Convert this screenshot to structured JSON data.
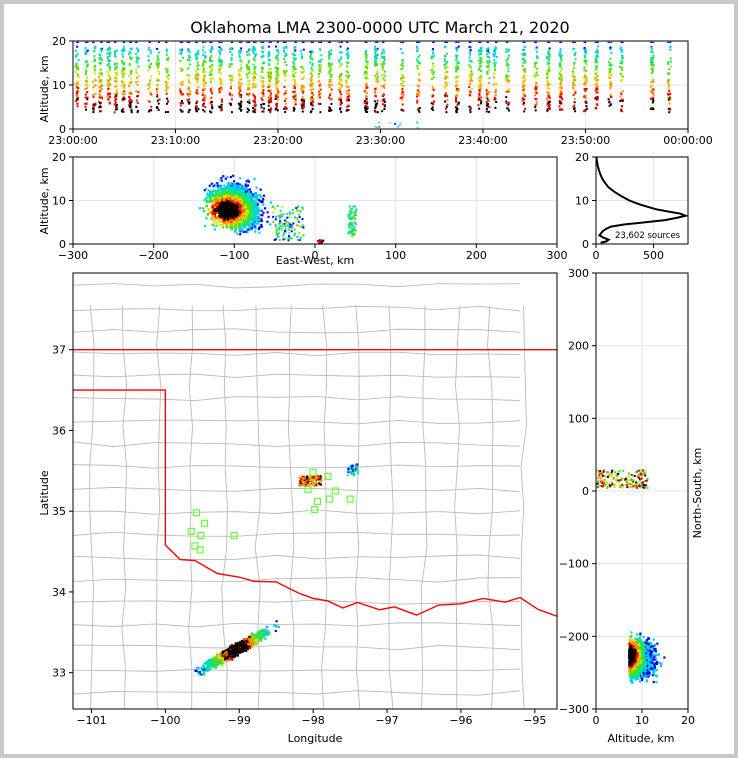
{
  "chart_data": {
    "title": "Oklahoma LMA 2300-0000 UTC March 21, 2020",
    "colors": {
      "sources": [
        "#0000ff",
        "#00c8ff",
        "#00e890",
        "#50e000",
        "#d8e000",
        "#ff9000",
        "#ff0000",
        "#000000"
      ],
      "state_border": "#ff0000",
      "county": "#bbbbbb",
      "station": "#66ff33",
      "grid": "#e6e6e6"
    },
    "time_height": {
      "type": "scatter",
      "ylabel": "Altitude, km",
      "xticks": [
        "23:00:00",
        "23:10:00",
        "23:20:00",
        "23:30:00",
        "23:40:00",
        "23:50:00",
        "00:00:00"
      ],
      "xlim_minutes": [
        0,
        60
      ],
      "ylim": [
        0,
        20
      ],
      "yticks": [
        "0",
        "10",
        "20"
      ],
      "flash_times_minutes": [
        0.3,
        1.2,
        2.0,
        2.6,
        3.4,
        4.1,
        4.8,
        5.5,
        6.2,
        7.4,
        8.2,
        9.1,
        10.5,
        11.2,
        12.0,
        12.7,
        13.4,
        14.3,
        15.3,
        16.2,
        17.0,
        17.6,
        18.4,
        19.1,
        19.8,
        20.6,
        21.5,
        22.3,
        23.2,
        24.0,
        25.0,
        26.0,
        26.7,
        28.5,
        29.5,
        30.2,
        32.0,
        33.6,
        35.0,
        36.3,
        37.4,
        38.7,
        39.6,
        40.4,
        41.1,
        42.3,
        43.9,
        45.1,
        46.3,
        47.5,
        48.8,
        49.9,
        51.0,
        52.3,
        53.4,
        56.4,
        58.1
      ]
    },
    "ew_height": {
      "type": "scatter",
      "xlabel": "East-West, km",
      "ylabel": "Altitude, km",
      "xlim": [
        -300,
        300
      ],
      "ylim": [
        0,
        20
      ],
      "xticks": [
        "−300",
        "−200",
        "−100",
        "0",
        "100",
        "200",
        "300"
      ],
      "yticks": [
        "0",
        "10",
        "20"
      ]
    },
    "histogram": {
      "type": "line",
      "xlim": [
        0,
        800
      ],
      "ylim": [
        0,
        20
      ],
      "xticks": [
        "0",
        "500"
      ],
      "yticks": [
        "0",
        "10",
        "20"
      ],
      "annotation": "23,602 sources",
      "profile": [
        [
          0.3,
          40
        ],
        [
          0.6,
          90
        ],
        [
          1.0,
          110
        ],
        [
          1.5,
          60
        ],
        [
          2.0,
          30
        ],
        [
          2.5,
          45
        ],
        [
          3.0,
          60
        ],
        [
          3.5,
          90
        ],
        [
          4.0,
          130
        ],
        [
          4.5,
          250
        ],
        [
          5.0,
          430
        ],
        [
          5.5,
          600
        ],
        [
          6.0,
          700
        ],
        [
          6.5,
          780
        ],
        [
          7.0,
          730
        ],
        [
          7.5,
          620
        ],
        [
          8.0,
          520
        ],
        [
          9.0,
          390
        ],
        [
          10.0,
          290
        ],
        [
          11.0,
          220
        ],
        [
          12.0,
          160
        ],
        [
          13.0,
          110
        ],
        [
          14.0,
          80
        ],
        [
          15.0,
          55
        ],
        [
          16.0,
          38
        ],
        [
          17.0,
          25
        ],
        [
          18.0,
          15
        ],
        [
          19.0,
          8
        ],
        [
          20.0,
          3
        ]
      ]
    },
    "plan_view": {
      "type": "scatter",
      "xlabel": "Longitude",
      "ylabel": "Latitude",
      "xlim": [
        -101.25,
        -94.7
      ],
      "ylim": [
        32.55,
        37.95
      ],
      "xticks": [
        "−101",
        "−100",
        "−99",
        "−98",
        "−97",
        "−96",
        "−95"
      ],
      "yticks": [
        "33",
        "34",
        "35",
        "36",
        "37"
      ],
      "stations": [
        [
          -99.58,
          34.98
        ],
        [
          -99.65,
          34.75
        ],
        [
          -99.47,
          34.85
        ],
        [
          -99.52,
          34.7
        ],
        [
          -99.6,
          34.57
        ],
        [
          -99.53,
          34.52
        ],
        [
          -99.07,
          34.7
        ],
        [
          -98.0,
          35.48
        ],
        [
          -97.8,
          35.43
        ],
        [
          -98.07,
          35.27
        ],
        [
          -97.94,
          35.12
        ],
        [
          -97.78,
          35.15
        ],
        [
          -97.7,
          35.25
        ],
        [
          -97.5,
          35.15
        ],
        [
          -97.98,
          35.02
        ]
      ]
    },
    "ns_height": {
      "type": "scatter",
      "xlabel": "Altitude, km",
      "ylabel": "North-South, km",
      "xlim": [
        0,
        20
      ],
      "ylim": [
        -300,
        300
      ],
      "xticks": [
        "0",
        "10",
        "20"
      ],
      "yticks": [
        "−300",
        "−200",
        "−100",
        "0",
        "100",
        "200",
        "300"
      ]
    }
  }
}
